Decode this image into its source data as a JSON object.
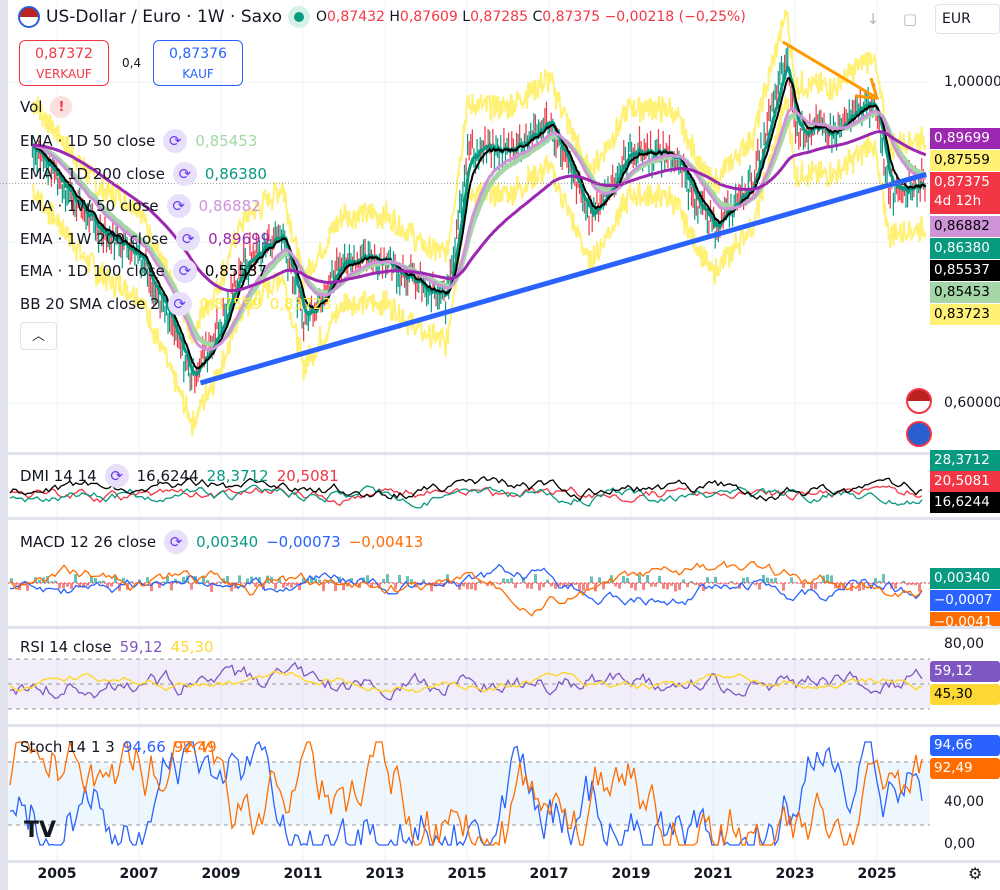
{
  "header": {
    "symbol": "US-Dollar / Euro · 1W · Saxo",
    "open_label": "O",
    "open": "0,87432",
    "high_label": "H",
    "high": "0,87609",
    "low_label": "L",
    "low": "0,87285",
    "close_label": "C",
    "close": "0,87375",
    "change": "−0,00218 (−0,25%)",
    "currency": "EUR",
    "icons": [
      "usd-eur-flag-icon",
      "market-status-dot-icon",
      "arrow-down-icon",
      "fullscreen-icon"
    ]
  },
  "trade": {
    "sell_price": "0,87372",
    "sell_label": "VERKAUF",
    "spread": "0,4",
    "buy_price": "0,87376",
    "buy_label": "KAUF"
  },
  "legend": {
    "vol": "Vol",
    "items": [
      {
        "label": "EMA · 1D 50 close",
        "value": "0,85453",
        "color": "#a5d6a7"
      },
      {
        "label": "EMA · 1D 200 close",
        "value": "0,86380",
        "color": "#089981"
      },
      {
        "label": "EMA · 1W 50 close",
        "value": "0,86882",
        "color": "#ce93d8"
      },
      {
        "label": "EMA · 1W 200 close",
        "value": "0,89699",
        "color": "#9c27b0"
      },
      {
        "label": "EMA · 1D 100 close",
        "value": "0,85537",
        "color": "#000000"
      },
      {
        "label": "BB 20 SMA close 2",
        "value": "0,87559",
        "value2": "0,83723",
        "color": "#ffeb3b"
      }
    ]
  },
  "price_tags": [
    {
      "value": "0,89699",
      "bg": "#9c27b0",
      "fg": "#fff"
    },
    {
      "value": "0,87559",
      "bg": "#fff176",
      "fg": "#000"
    },
    {
      "value": "0,87375",
      "sub": "4d 12h",
      "bg": "#f23645",
      "fg": "#fff"
    },
    {
      "value": "0,86882",
      "bg": "#ce93d8",
      "fg": "#000"
    },
    {
      "value": "0,86380",
      "bg": "#089981",
      "fg": "#fff"
    },
    {
      "value": "0,85537",
      "bg": "#000000",
      "fg": "#fff"
    },
    {
      "value": "0,85453",
      "bg": "#a5d6a7",
      "fg": "#000"
    },
    {
      "value": "0,83723",
      "bg": "#fff176",
      "fg": "#000"
    }
  ],
  "dmi": {
    "label": "DMI 14 14",
    "adx": "16,6244",
    "plus_di": "28,3712",
    "minus_di": "20,5081"
  },
  "macd": {
    "label": "MACD 12 26 close",
    "hist": "0,00340",
    "macd": "−0,00073",
    "signal": "−0,00413",
    "tag_macd": "−0,0007",
    "tag_signal": "−0,0041"
  },
  "rsi": {
    "label": "RSI 14 close",
    "rsi": "59,12",
    "ma": "45,30",
    "axis_top": "80,00"
  },
  "stoch": {
    "label": "Stoch 14 1 3",
    "k": "94,66",
    "d": "92,49",
    "axis_mid": "40,00",
    "axis_bottom": "0,00"
  },
  "chart_data": {
    "type": "line",
    "title": "US-Dollar / Euro · 1W · Saxo",
    "y_ticks": [
      "1,00000",
      "0,60000"
    ],
    "ylim": [
      0.56,
      1.04
    ],
    "x_ticks": [
      "2005",
      "2007",
      "2009",
      "2011",
      "2013",
      "2015",
      "2017",
      "2019",
      "2021",
      "2023",
      "2025"
    ],
    "xlim": [
      2004.3,
      2026.5
    ],
    "price_series": {
      "x": [
        2004.5,
        2006,
        2007,
        2008.3,
        2009,
        2009.5,
        2010.5,
        2011,
        2012,
        2013,
        2014,
        2014.5,
        2015,
        2016,
        2017,
        2018,
        2019,
        2020,
        2021,
        2022,
        2022.8,
        2023,
        2024,
        2024.9,
        2025.3,
        2026
      ],
      "y": [
        0.915,
        0.815,
        0.79,
        0.63,
        0.7,
        0.77,
        0.815,
        0.7,
        0.78,
        0.78,
        0.74,
        0.73,
        0.915,
        0.915,
        0.95,
        0.83,
        0.915,
        0.91,
        0.815,
        0.88,
        1.035,
        0.94,
        0.94,
        0.98,
        0.865,
        0.874
      ]
    },
    "trendline": {
      "color": "#2962ff",
      "from": [
        2008.5,
        0.625
      ],
      "to": [
        2026.2,
        0.885
      ]
    },
    "arrow": {
      "color": "#ff9800",
      "from": [
        2022.7,
        1.05
      ],
      "to": [
        2025,
        0.98
      ]
    },
    "grid": true,
    "last_close": 0.87375
  }
}
